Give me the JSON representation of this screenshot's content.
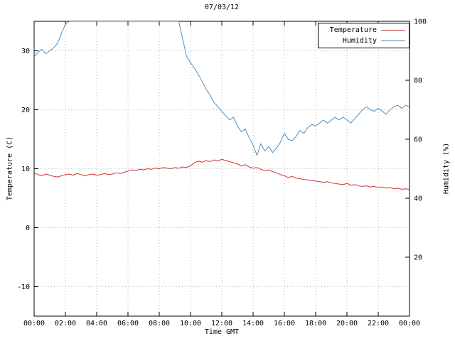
{
  "chart_data": {
    "type": "line",
    "title": "07/03/12",
    "xlabel": "Time GMT",
    "ylabel_left": "Temperature (C)",
    "ylabel_right": "Humidity (%)",
    "x_range": [
      0,
      24
    ],
    "x_tick_step_hours": 2,
    "x_tick_labels": [
      "00:00",
      "02:00",
      "04:00",
      "06:00",
      "08:00",
      "10:00",
      "12:00",
      "14:00",
      "16:00",
      "18:00",
      "20:00",
      "22:00",
      "00:00"
    ],
    "y_left_range": [
      -15,
      35
    ],
    "y_left_ticks": [
      -10,
      0,
      10,
      20,
      30
    ],
    "y_right_range": [
      0,
      100
    ],
    "y_right_ticks": [
      20,
      40,
      60,
      80,
      100
    ],
    "grid_style": "dotted",
    "legend_position": "top-right",
    "colors": {
      "temperature": "#cc3333",
      "humidity": "#4a8fc2",
      "grid": "#b9b9b9",
      "axis": "#000000",
      "text": "#000000",
      "background": "#ffffff"
    },
    "legend": [
      {
        "name": "Temperature"
      },
      {
        "name": "Humidity"
      }
    ],
    "series": [
      {
        "name": "Temperature",
        "axis": "left",
        "color_key": "temperature",
        "x_start": 0,
        "x_step": 0.25,
        "values": [
          9.2,
          9.0,
          8.8,
          9.1,
          8.9,
          8.7,
          8.6,
          8.8,
          9.0,
          9.1,
          8.9,
          9.2,
          9.0,
          8.8,
          9.0,
          9.1,
          8.9,
          9.0,
          9.2,
          9.0,
          9.1,
          9.3,
          9.2,
          9.4,
          9.6,
          9.8,
          9.7,
          9.9,
          9.8,
          10.0,
          9.9,
          10.1,
          10.0,
          10.2,
          10.1,
          10.0,
          10.2,
          10.1,
          10.3,
          10.2,
          10.5,
          11.0,
          11.3,
          11.1,
          11.4,
          11.2,
          11.5,
          11.3,
          11.6,
          11.4,
          11.2,
          11.0,
          10.8,
          10.5,
          10.7,
          10.3,
          10.1,
          10.2,
          9.9,
          9.7,
          9.8,
          9.5,
          9.3,
          9.0,
          8.8,
          8.5,
          8.7,
          8.4,
          8.3,
          8.2,
          8.1,
          8.0,
          7.9,
          7.8,
          7.7,
          7.8,
          7.6,
          7.5,
          7.4,
          7.3,
          7.5,
          7.2,
          7.3,
          7.1,
          7.0,
          7.1,
          6.9,
          7.0,
          6.8,
          6.9,
          6.7,
          6.8,
          6.6,
          6.7,
          6.5,
          6.6,
          6.5
        ]
      },
      {
        "name": "Humidity",
        "axis": "right",
        "color_key": "humidity",
        "x_start": 0,
        "x_step": 0.25,
        "values": [
          88,
          89.5,
          90.5,
          89,
          90,
          91,
          92.5,
          96,
          99,
          100,
          100,
          100,
          100,
          100,
          100,
          100,
          100,
          100,
          100,
          100,
          100,
          100,
          100,
          100,
          100,
          100,
          100,
          100,
          100,
          100,
          100,
          100,
          100,
          100,
          100,
          100,
          100,
          100,
          94,
          88,
          86,
          84,
          82,
          79.5,
          77,
          75,
          72.5,
          71,
          69.5,
          68,
          66.5,
          67.5,
          64.5,
          62.5,
          63.5,
          60.5,
          58,
          54.5,
          58.5,
          56,
          57.5,
          55.5,
          57,
          59,
          62,
          60,
          59.5,
          61,
          63,
          62,
          64,
          65,
          64.5,
          65.5,
          66.5,
          65.5,
          66.5,
          67.5,
          66.5,
          67.5,
          66.5,
          65.5,
          67,
          68.5,
          70,
          71,
          70,
          69.5,
          70.5,
          69.5,
          68.5,
          70,
          71,
          71.5,
          70.5,
          71.5,
          71
        ]
      }
    ]
  }
}
